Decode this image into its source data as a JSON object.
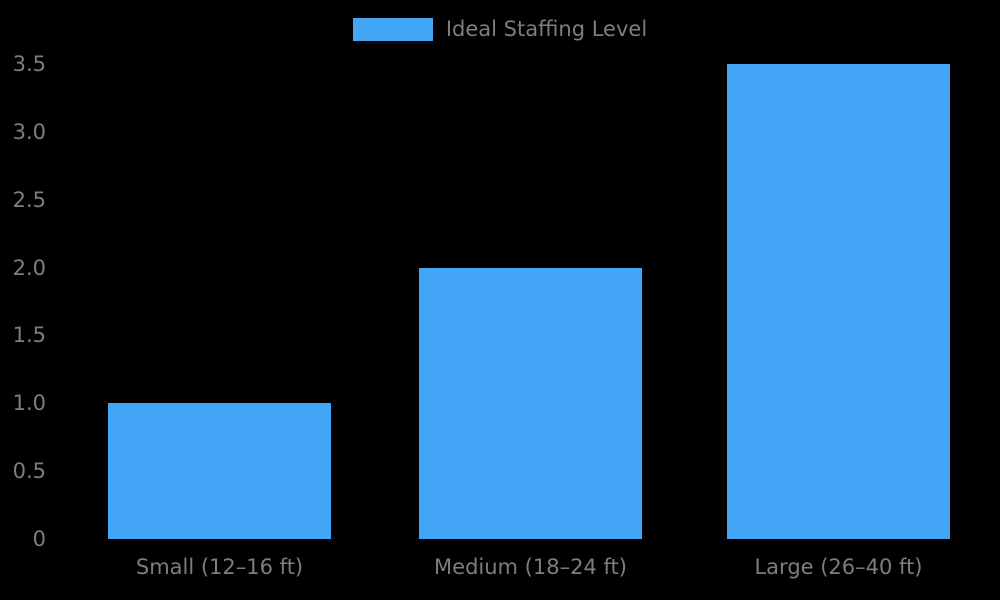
{
  "chart_data": {
    "type": "bar",
    "title": "",
    "categories": [
      "Small (12–16 ft)",
      "Medium (18–24 ft)",
      "Large (26–40 ft)"
    ],
    "values": [
      1.0,
      2.0,
      3.5
    ],
    "series": [
      {
        "name": "Ideal Staffing Level",
        "values": [
          1.0,
          2.0,
          3.5
        ]
      }
    ],
    "legend": {
      "label": "Ideal Staffing Level",
      "position": "top-center"
    },
    "xlabel": "",
    "ylabel": "",
    "ylim": [
      0,
      3.5
    ],
    "yticks": [
      0,
      0.5,
      1.0,
      1.5,
      2.0,
      2.5,
      3.0,
      3.5
    ],
    "ytick_labels": [
      "0",
      "0.5",
      "1.0",
      "1.5",
      "2.0",
      "2.5",
      "3.0",
      "3.5"
    ],
    "grid": false,
    "colors": {
      "bar": "#42A5F5",
      "text": "#7D7D7D",
      "background": "#000000"
    }
  }
}
